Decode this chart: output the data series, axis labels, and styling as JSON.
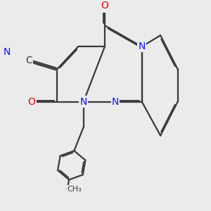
{
  "background_color": "#ebebeb",
  "bond_color": "#3a3a3a",
  "bond_width": 1.6,
  "dbo": 0.055,
  "atom_colors": {
    "N": "#1010ff",
    "O": "#ee0000",
    "C": "#3a3a3a",
    "N_dark": "#0000cc"
  },
  "font_size": 10,
  "figsize": [
    3.0,
    3.0
  ],
  "dpi": 100
}
